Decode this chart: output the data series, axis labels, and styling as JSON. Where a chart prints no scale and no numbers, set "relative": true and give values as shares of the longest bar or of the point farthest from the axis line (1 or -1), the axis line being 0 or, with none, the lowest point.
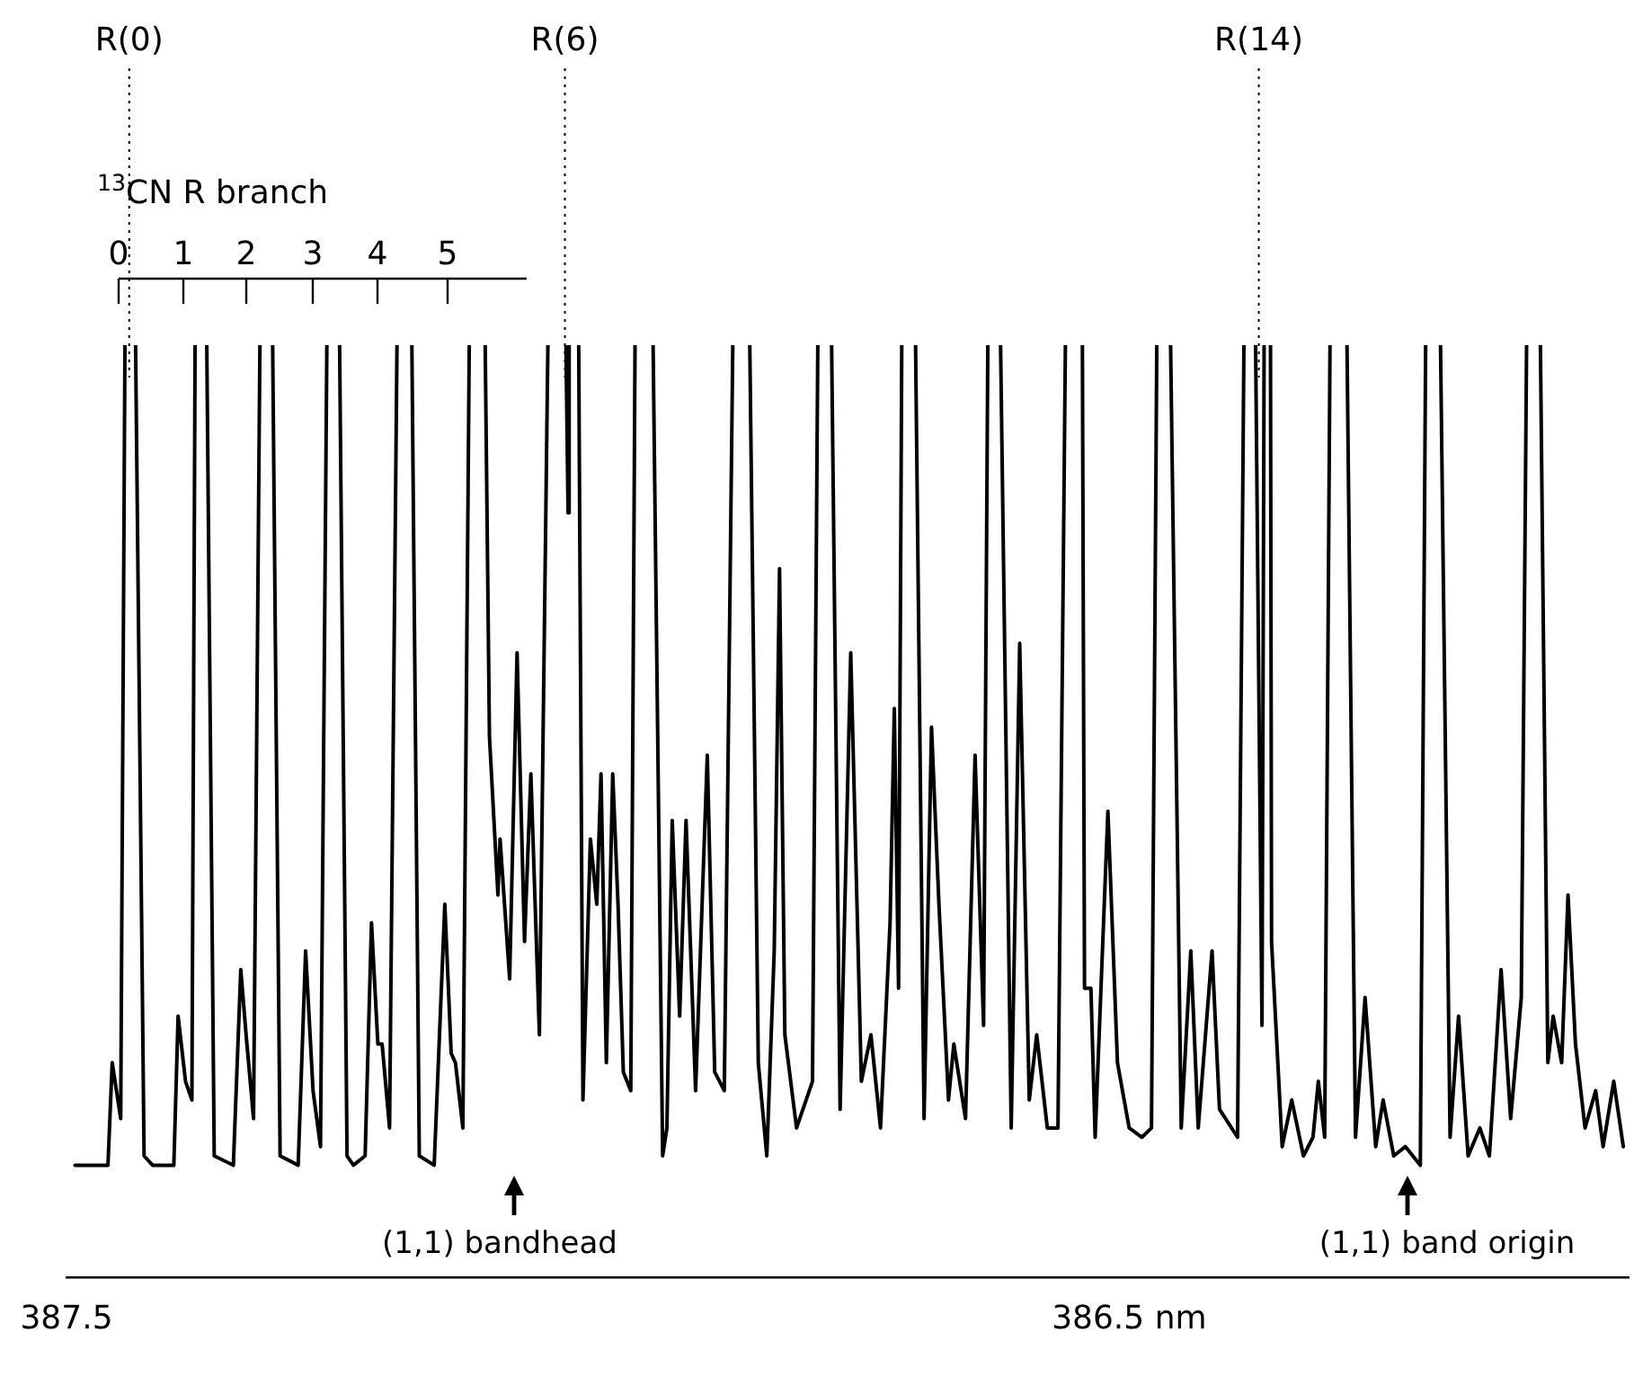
{
  "chart_data": {
    "type": "line",
    "relative": true,
    "color": "#000000",
    "line_style": "solid",
    "xlim": [
      387.5,
      386.03
    ],
    "xticks": [
      387.5,
      {
        "value": 386.5,
        "label": "386.5 nm"
      }
    ],
    "ref_lines": [
      {
        "axis": "x",
        "value": 387.441,
        "label": "R(0)",
        "line_style": "dotted"
      },
      {
        "axis": "x",
        "value": 387.031,
        "label": "R(6)",
        "line_style": "dotted"
      },
      {
        "axis": "x",
        "value": 386.378,
        "label": "R(14)",
        "line_style": "dotted"
      }
    ],
    "annotations": [
      "$^{13}$CN R branch",
      "0",
      "1",
      "2",
      "3",
      "4",
      "5",
      "(1,1) bandhead",
      "(1,1) band origin"
    ],
    "x": [
      387.492,
      387.461,
      387.457,
      387.449,
      387.445,
      387.44,
      387.435,
      387.427,
      387.419,
      387.399,
      387.395,
      387.388,
      387.382,
      387.379,
      387.374,
      387.368,
      387.361,
      387.343,
      387.336,
      387.331,
      387.324,
      387.318,
      387.312,
      387.306,
      387.299,
      387.282,
      387.275,
      387.268,
      387.261,
      387.255,
      387.249,
      387.243,
      387.236,
      387.23,
      387.219,
      387.213,
      387.207,
      387.203,
      387.196,
      387.189,
      387.182,
      387.175,
      387.168,
      387.154,
      387.144,
      387.138,
      387.134,
      387.127,
      387.121,
      387.114,
      387.106,
      387.102,
      387.094,
      387.092,
      387.083,
      387.076,
      387.069,
      387.063,
      387.055,
      387.047,
      387.038,
      387.03,
      387.028,
      387.027,
      387.022,
      387.018,
      387.014,
      387.007,
      387.001,
      386.997,
      386.992,
      386.986,
      386.981,
      386.976,
      386.969,
      386.965,
      386.956,
      386.948,
      386.939,
      386.935,
      386.93,
      386.923,
      386.917,
      386.908,
      386.897,
      386.89,
      386.881,
      386.873,
      386.865,
      386.857,
      386.849,
      386.841,
      386.834,
      386.829,
      386.824,
      386.813,
      386.798,
      386.793,
      386.786,
      386.78,
      386.772,
      386.762,
      386.752,
      386.743,
      386.734,
      386.725,
      386.721,
      386.717,
      386.714,
      386.707,
      386.701,
      386.693,
      386.686,
      386.679,
      386.67,
      386.665,
      386.654,
      386.645,
      386.637,
      386.633,
      386.627,
      386.621,
      386.611,
      386.603,
      386.594,
      386.587,
      386.577,
      386.567,
      386.56,
      386.552,
      386.544,
      386.542,
      386.536,
      386.532,
      386.52,
      386.511,
      386.5,
      386.488,
      386.479,
      386.474,
      386.468,
      386.461,
      386.451,
      386.442,
      386.435,
      386.422,
      386.415,
      386.398,
      386.392,
      386.386,
      386.381,
      386.375,
      386.373,
      386.37,
      386.367,
      386.366,
      386.356,
      386.347,
      386.336,
      386.327,
      386.322,
      386.316,
      386.311,
      386.303,
      386.295,
      386.287,
      386.278,
      386.268,
      386.261,
      386.251,
      386.24,
      386.226,
      386.221,
      386.214,
      386.207,
      386.198,
      386.19,
      386.181,
      386.17,
      386.161,
      386.15,
      386.141,
      386.131,
      386.126,
      386.12,
      386.113,
      386.106,
      386.101,
      386.093,
      386.087,
      386.08,
      386.071,
      386.061,
      386.054,
      386.044,
      386.035
    ],
    "values": [
      0.12,
      0.12,
      0.23,
      0.17,
      1,
      null,
      1,
      0.13,
      0.12,
      0.12,
      0.28,
      0.21,
      0.19,
      1,
      null,
      1,
      0.13,
      0.12,
      0.33,
      0.26,
      0.17,
      1,
      null,
      1,
      0.13,
      0.12,
      0.35,
      0.2,
      0.14,
      1,
      null,
      1,
      0.13,
      0.12,
      0.13,
      0.38,
      0.25,
      0.25,
      0.16,
      1,
      null,
      1,
      0.13,
      0.12,
      0.4,
      0.24,
      0.23,
      0.16,
      1,
      null,
      1,
      0.58,
      0.41,
      0.47,
      0.32,
      0.67,
      0.36,
      0.54,
      0.26,
      1,
      null,
      1,
      0.82,
      1,
      null,
      1,
      0.19,
      0.47,
      0.4,
      0.54,
      0.23,
      0.54,
      0.4,
      0.22,
      0.2,
      1,
      null,
      1,
      0.13,
      0.16,
      0.49,
      0.28,
      0.49,
      0.2,
      0.56,
      0.22,
      0.2,
      1,
      null,
      1,
      0.23,
      0.13,
      0.35,
      0.76,
      0.26,
      0.16,
      0.21,
      1,
      null,
      1,
      0.18,
      0.67,
      0.21,
      0.26,
      0.16,
      0.38,
      0.61,
      0.31,
      1,
      null,
      1,
      0.17,
      0.59,
      0.4,
      0.19,
      0.25,
      0.17,
      0.56,
      0.27,
      1,
      null,
      1,
      0.16,
      0.68,
      0.19,
      0.26,
      0.16,
      0.16,
      1,
      null,
      1,
      0.31,
      0.31,
      0.15,
      0.5,
      0.23,
      0.16,
      0.15,
      0.16,
      1,
      null,
      1,
      0.16,
      0.35,
      0.16,
      0.35,
      0.18,
      0.15,
      1,
      null,
      1,
      0.27,
      1,
      null,
      1,
      0.36,
      0.14,
      0.19,
      0.13,
      0.15,
      0.21,
      0.15,
      1,
      null,
      1,
      0.15,
      0.3,
      0.14,
      0.19,
      0.13,
      0.14,
      0.12,
      1,
      null,
      1,
      0.15,
      0.28,
      0.13,
      0.16,
      0.13,
      0.33,
      0.17,
      0.3,
      1,
      null,
      1,
      0.23,
      0.28,
      0.23,
      0.41,
      0.25,
      0.16,
      0.2,
      0.14,
      0.21,
      0.14
    ]
  }
}
